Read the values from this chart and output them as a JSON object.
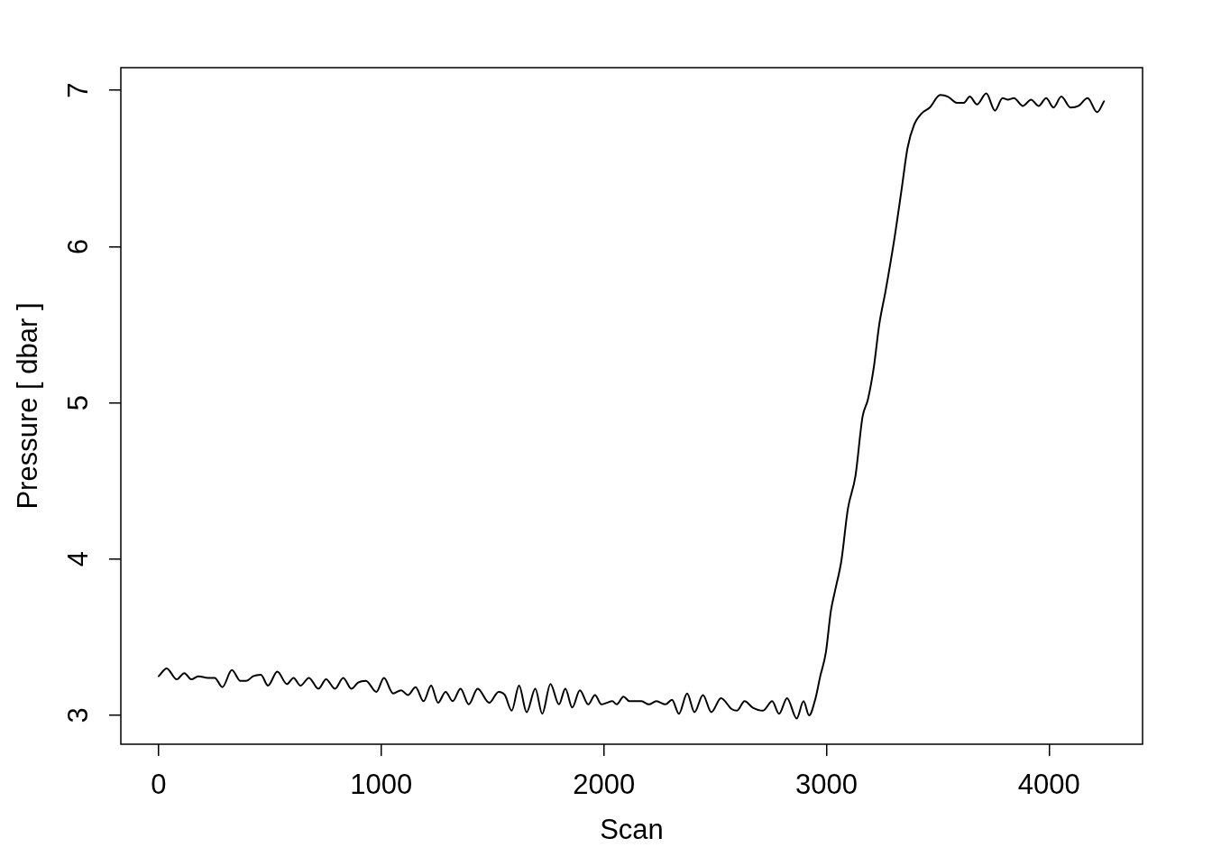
{
  "chart_data": {
    "type": "line",
    "xlabel": "Scan",
    "ylabel": "Pressure [ dbar ]",
    "x": [
      0,
      36,
      81,
      115,
      147,
      178,
      221,
      252,
      286,
      329,
      367,
      394,
      424,
      459,
      491,
      533,
      576,
      606,
      637,
      675,
      718,
      752,
      792,
      829,
      866,
      896,
      931,
      978,
      1012,
      1053,
      1089,
      1120,
      1154,
      1190,
      1224,
      1255,
      1289,
      1321,
      1356,
      1393,
      1433,
      1485,
      1527,
      1555,
      1586,
      1619,
      1653,
      1692,
      1723,
      1760,
      1798,
      1827,
      1858,
      1892,
      1930,
      1960,
      1989,
      2013,
      2038,
      2058,
      2088,
      2115,
      2142,
      2169,
      2202,
      2236,
      2277,
      2306,
      2337,
      2374,
      2407,
      2445,
      2483,
      2526,
      2574,
      2598,
      2632,
      2668,
      2715,
      2756,
      2787,
      2823,
      2866,
      2897,
      2922,
      2951,
      2972,
      2997,
      3020,
      3039,
      3067,
      3096,
      3130,
      3162,
      3186,
      3213,
      3237,
      3266,
      3304,
      3337,
      3364,
      3394,
      3426,
      3464,
      3511,
      3545,
      3586,
      3617,
      3644,
      3676,
      3718,
      3757,
      3791,
      3815,
      3842,
      3883,
      3919,
      3953,
      3987,
      4020,
      4055,
      4096,
      4132,
      4173,
      4216,
      4247
    ],
    "series": [
      {
        "color": "#000000",
        "values": [
          3.25,
          3.3,
          3.23,
          3.27,
          3.23,
          3.25,
          3.24,
          3.24,
          3.18,
          3.29,
          3.22,
          3.22,
          3.25,
          3.26,
          3.19,
          3.28,
          3.2,
          3.24,
          3.19,
          3.24,
          3.17,
          3.23,
          3.17,
          3.24,
          3.17,
          3.21,
          3.22,
          3.15,
          3.24,
          3.14,
          3.16,
          3.13,
          3.18,
          3.09,
          3.19,
          3.08,
          3.15,
          3.09,
          3.17,
          3.07,
          3.17,
          3.08,
          3.15,
          3.13,
          3.03,
          3.19,
          3.02,
          3.17,
          3.01,
          3.2,
          3.07,
          3.17,
          3.05,
          3.16,
          3.07,
          3.13,
          3.07,
          3.08,
          3.09,
          3.07,
          3.12,
          3.09,
          3.09,
          3.09,
          3.07,
          3.09,
          3.07,
          3.1,
          3.01,
          3.14,
          3.02,
          3.13,
          3.02,
          3.11,
          3.04,
          3.03,
          3.09,
          3.05,
          3.03,
          3.09,
          3.01,
          3.11,
          2.98,
          3.09,
          3.0,
          3.11,
          3.25,
          3.4,
          3.67,
          3.8,
          3.99,
          4.32,
          4.53,
          4.91,
          5.02,
          5.23,
          5.5,
          5.72,
          6.04,
          6.36,
          6.63,
          6.78,
          6.85,
          6.89,
          6.97,
          6.96,
          6.92,
          6.92,
          6.96,
          6.91,
          6.98,
          6.87,
          6.95,
          6.94,
          6.95,
          6.9,
          6.94,
          6.9,
          6.95,
          6.89,
          6.96,
          6.89,
          6.9,
          6.95,
          6.86,
          6.93
        ]
      }
    ],
    "xlim": [
      -170,
      4420
    ],
    "ylim": [
      2.815,
      7.145
    ],
    "xticks": [
      0,
      1000,
      2000,
      3000,
      4000
    ],
    "yticks": [
      3,
      4,
      5,
      6,
      7
    ],
    "line_style": "solid"
  }
}
